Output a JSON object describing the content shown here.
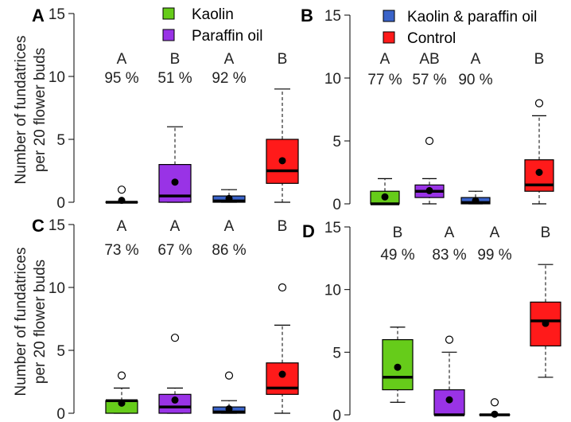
{
  "figure": {
    "ylabel": [
      "Number of fundatrices",
      "per 20 flower buds"
    ]
  },
  "legend": {
    "items": [
      {
        "label": "Kaolin",
        "color": "#66cc1a"
      },
      {
        "label": "Paraffin oil",
        "color": "#9933e6"
      },
      {
        "label": "Kaolin & paraffin oil",
        "color": "#3a63c9"
      },
      {
        "label": "Control",
        "color": "#ff1a1a"
      }
    ]
  },
  "chart_data": [
    {
      "type": "boxplot",
      "panel": "A",
      "ylim": [
        0,
        15
      ],
      "yticks": [
        0,
        5,
        10,
        15
      ],
      "colors": [
        "#66cc1a",
        "#9933e6",
        "#3a63c9",
        "#ff1a1a"
      ],
      "letters": [
        "A",
        "B",
        "A",
        "B"
      ],
      "percents": [
        "95 %",
        "51 %",
        "92 %",
        ""
      ],
      "boxes": [
        {
          "q1": 0,
          "median": 0,
          "q3": 0,
          "whisker_low": 0,
          "whisker_high": 0,
          "mean": 0.15,
          "outliers": [
            1
          ]
        },
        {
          "q1": 0,
          "median": 0.5,
          "q3": 3,
          "whisker_low": 0,
          "whisker_high": 6,
          "mean": 1.6,
          "outliers": []
        },
        {
          "q1": 0,
          "median": 0.1,
          "q3": 0.5,
          "whisker_low": 0,
          "whisker_high": 1,
          "mean": 0.3,
          "outliers": []
        },
        {
          "q1": 1.5,
          "median": 2.5,
          "q3": 5,
          "whisker_low": 0,
          "whisker_high": 9,
          "mean": 3.3,
          "outliers": []
        }
      ]
    },
    {
      "type": "boxplot",
      "panel": "B",
      "ylim": [
        0,
        15
      ],
      "yticks": [
        0,
        5,
        10,
        15
      ],
      "colors": [
        "#66cc1a",
        "#9933e6",
        "#3a63c9",
        "#ff1a1a"
      ],
      "letters": [
        "A",
        "AB",
        "A",
        "B"
      ],
      "percents": [
        "77 %",
        "57 %",
        "90 %",
        ""
      ],
      "boxes": [
        {
          "q1": 0,
          "median": 0,
          "q3": 1,
          "whisker_low": 0,
          "whisker_high": 2,
          "mean": 0.55,
          "outliers": []
        },
        {
          "q1": 0.5,
          "median": 1,
          "q3": 1.5,
          "whisker_low": 0,
          "whisker_high": 2,
          "mean": 1.05,
          "outliers": [
            5
          ]
        },
        {
          "q1": 0,
          "median": 0.1,
          "q3": 0.5,
          "whisker_low": 0,
          "whisker_high": 1,
          "mean": 0.25,
          "outliers": []
        },
        {
          "q1": 1,
          "median": 1.5,
          "q3": 3.5,
          "whisker_low": 0,
          "whisker_high": 7,
          "mean": 2.5,
          "outliers": [
            8
          ]
        }
      ]
    },
    {
      "type": "boxplot",
      "panel": "C",
      "ylim": [
        0,
        15
      ],
      "yticks": [
        0,
        5,
        10,
        15
      ],
      "colors": [
        "#66cc1a",
        "#9933e6",
        "#3a63c9",
        "#ff1a1a"
      ],
      "letters": [
        "A",
        "A",
        "A",
        "B"
      ],
      "percents": [
        "73 %",
        "67 %",
        "86 %",
        ""
      ],
      "boxes": [
        {
          "q1": 0,
          "median": 1,
          "q3": 1,
          "whisker_low": 0,
          "whisker_high": 2,
          "mean": 0.8,
          "outliers": [
            3
          ]
        },
        {
          "q1": 0,
          "median": 0.5,
          "q3": 1.5,
          "whisker_low": 0,
          "whisker_high": 2,
          "mean": 1.05,
          "outliers": [
            6
          ]
        },
        {
          "q1": 0,
          "median": 0.1,
          "q3": 0.5,
          "whisker_low": 0,
          "whisker_high": 1,
          "mean": 0.35,
          "outliers": [
            3
          ]
        },
        {
          "q1": 1.5,
          "median": 2,
          "q3": 4,
          "whisker_low": 0,
          "whisker_high": 7,
          "mean": 3.1,
          "outliers": [
            10
          ]
        }
      ]
    },
    {
      "type": "boxplot",
      "panel": "D",
      "ylim": [
        0,
        15
      ],
      "yticks": [
        0,
        5,
        10,
        15
      ],
      "colors": [
        "#66cc1a",
        "#9933e6",
        "#3a63c9",
        "#ff1a1a"
      ],
      "letters": [
        "B",
        "A",
        "A",
        "B"
      ],
      "percents": [
        "49 %",
        "83 %",
        "99 %",
        ""
      ],
      "boxes": [
        {
          "q1": 2,
          "median": 3,
          "q3": 6,
          "whisker_low": 1,
          "whisker_high": 7,
          "mean": 3.8,
          "outliers": []
        },
        {
          "q1": 0,
          "median": 0,
          "q3": 2,
          "whisker_low": 0,
          "whisker_high": 5,
          "mean": 1.2,
          "outliers": [
            6
          ]
        },
        {
          "q1": 0,
          "median": 0,
          "q3": 0,
          "whisker_low": 0,
          "whisker_high": 0,
          "mean": 0.05,
          "outliers": [
            1
          ]
        },
        {
          "q1": 5.5,
          "median": 7.5,
          "q3": 9,
          "whisker_low": 3,
          "whisker_high": 12,
          "mean": 7.3,
          "outliers": []
        }
      ]
    }
  ]
}
